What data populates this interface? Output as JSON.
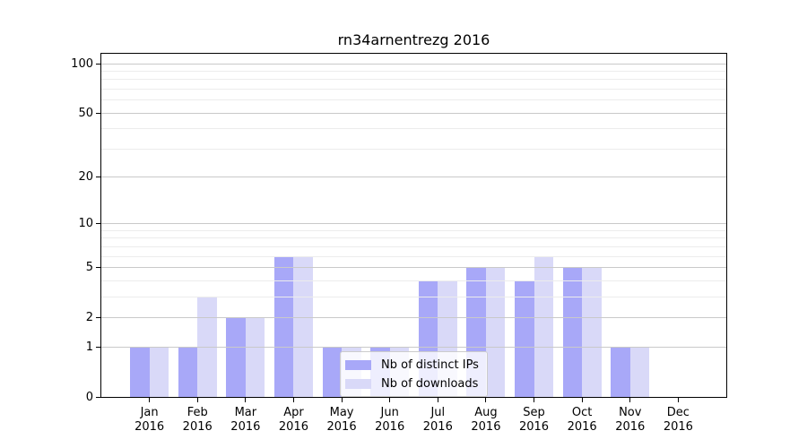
{
  "chart_data": {
    "type": "bar",
    "title": "rn34arnentrezg 2016",
    "categories": [
      "Jan\n2016",
      "Feb\n2016",
      "Mar\n2016",
      "Apr\n2016",
      "May\n2016",
      "Jun\n2016",
      "Jul\n2016",
      "Aug\n2016",
      "Sep\n2016",
      "Oct\n2016",
      "Nov\n2016",
      "Dec\n2016"
    ],
    "series": [
      {
        "name": "Nb of distinct IPs",
        "color": "#a8a8f8",
        "values": [
          1,
          1,
          2,
          6,
          1,
          1,
          4,
          5,
          4,
          5,
          1,
          0
        ]
      },
      {
        "name": "Nb of downloads",
        "color": "#d9d9f8",
        "values": [
          1,
          3,
          2,
          6,
          1,
          1,
          4,
          5,
          6,
          5,
          1,
          0
        ]
      }
    ],
    "y_axis": {
      "scale": "log1p",
      "major_ticks": [
        0,
        1,
        2,
        5,
        10,
        20,
        50,
        100
      ],
      "major_tick_labels": [
        "0",
        "1",
        "2",
        "5",
        "10",
        "20",
        "50",
        "100"
      ],
      "minor_ticks": [
        3,
        4,
        6,
        7,
        8,
        9,
        30,
        40,
        60,
        70,
        80,
        90
      ],
      "ylim": [
        0,
        116
      ]
    },
    "legend": {
      "position": "lower center"
    },
    "grid": true,
    "xlabel": "",
    "ylabel": ""
  },
  "colors": {
    "major_grid": "#c9c9c9",
    "minor_grid": "#ececec",
    "spine": "#000000",
    "background": "#ffffff"
  }
}
